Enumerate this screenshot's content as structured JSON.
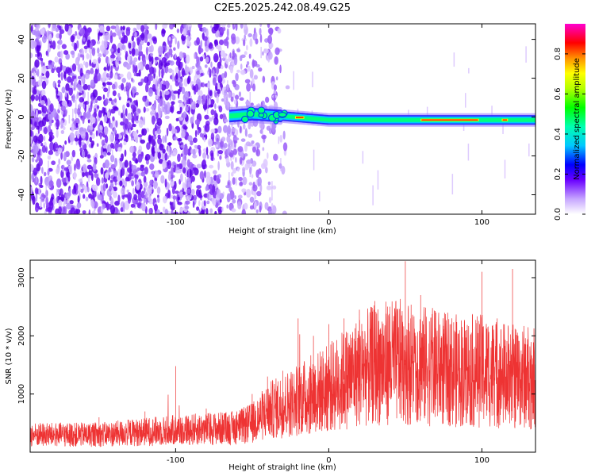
{
  "title": "C2E5.2025.242.08.49.G25",
  "chart_data": [
    {
      "type": "heatmap",
      "name": "spectrogram",
      "xlabel": "Height of straight line (km)",
      "ylabel": "Frequency (Hz)",
      "xlim": [
        -195,
        135
      ],
      "ylim": [
        -50,
        48
      ],
      "xticks": [
        -100,
        0,
        100
      ],
      "xtick_labels": [
        "-100",
        "0",
        "100"
      ],
      "yticks": [
        -40,
        -20,
        0,
        20,
        40
      ],
      "ytick_labels": [
        "-40",
        "-20",
        "0",
        "20",
        "40"
      ],
      "signal_band": {
        "x_start": -65,
        "x_end": 135,
        "center_freq": [
          [
            -65,
            0.5
          ],
          [
            -50,
            1.5
          ],
          [
            -30,
            0.5
          ],
          [
            0,
            -1.5
          ],
          [
            40,
            -1.5
          ],
          [
            100,
            -1.5
          ],
          [
            135,
            -1.5
          ]
        ],
        "note": "Strong narrow band near 0 Hz; normalized amplitude peaks near 1 around -20..-15 km, 60..100 km and 115 km"
      },
      "noise_region": {
        "x_start": -195,
        "x_end": -25,
        "freq_range": [
          -50,
          48
        ]
      },
      "colorbar": {
        "label": "Normalized spectral amplitude",
        "range": [
          0,
          0.95
        ],
        "ticks": [
          0,
          0.2,
          0.4,
          0.6,
          0.8
        ],
        "tick_labels": [
          "0.0",
          "0.2",
          "0.4",
          "0.6",
          "0.8"
        ]
      }
    },
    {
      "type": "line",
      "name": "snr",
      "color": "#ee3333",
      "xlabel": "Height of straight line (km)",
      "ylabel": "SNR (10 * v/v)",
      "xlim": [
        -195,
        135
      ],
      "ylim": [
        0,
        3300
      ],
      "xticks": [
        -100,
        0,
        100
      ],
      "xtick_labels": [
        "-100",
        "0",
        "100"
      ],
      "yticks": [
        1000,
        2000,
        3000
      ],
      "ytick_labels": [
        "1000",
        "2000",
        "3000"
      ],
      "envelope": {
        "x": [
          -195,
          -150,
          -120,
          -100,
          -80,
          -60,
          -50,
          -40,
          -30,
          -20,
          -10,
          0,
          10,
          20,
          30,
          40,
          50,
          60,
          70,
          80,
          90,
          100,
          110,
          120,
          135
        ],
        "mean": [
          300,
          300,
          350,
          380,
          400,
          420,
          500,
          700,
          800,
          900,
          1000,
          1100,
          1250,
          1400,
          1500,
          1550,
          1550,
          1500,
          1450,
          1400,
          1400,
          1400,
          1350,
          1300,
          1300
        ],
        "max": [
          600,
          600,
          700,
          1480,
          750,
          700,
          1000,
          1300,
          1400,
          2300,
          2000,
          2200,
          2300,
          2450,
          2600,
          2500,
          3300,
          2700,
          2400,
          2200,
          2100,
          3100,
          2300,
          3150,
          2500
        ]
      }
    }
  ]
}
